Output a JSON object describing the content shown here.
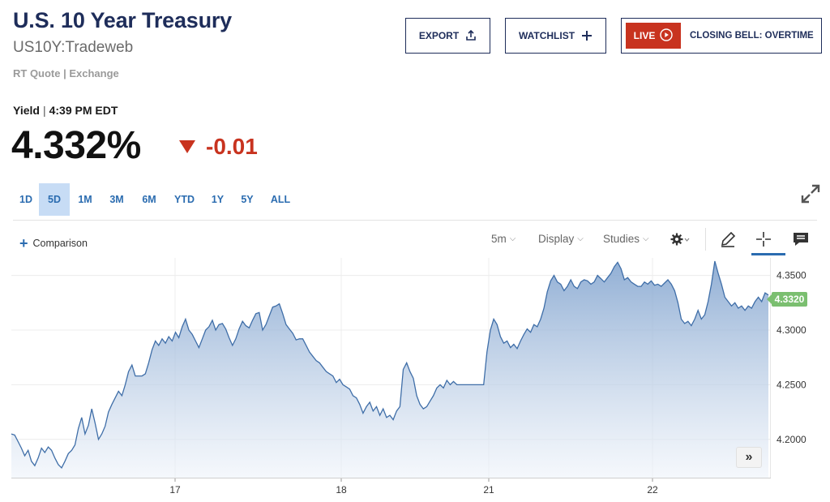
{
  "header": {
    "title": "U.S. 10 Year Treasury",
    "symbol": "US10Y:Tradeweb",
    "source": "RT Quote | Exchange"
  },
  "actions": {
    "export_label": "EXPORT",
    "watchlist_label": "WATCHLIST",
    "live_label": "LIVE",
    "closing_bell_label": "CLOSING BELL: OVERTIME"
  },
  "quote": {
    "label": "Yield",
    "time": "4:39 PM EDT",
    "last": "4.332%",
    "change": "-0.01",
    "direction": "down"
  },
  "ranges": [
    {
      "label": "1D",
      "active": false
    },
    {
      "label": "5D",
      "active": true
    },
    {
      "label": "1M",
      "active": false
    },
    {
      "label": "3M",
      "active": false
    },
    {
      "label": "6M",
      "active": false
    },
    {
      "label": "YTD",
      "active": false
    },
    {
      "label": "1Y",
      "active": false
    },
    {
      "label": "5Y",
      "active": false
    },
    {
      "label": "ALL",
      "active": false
    }
  ],
  "toolbar": {
    "comparison_label": "Comparison",
    "interval_label": "5m",
    "display_label": "Display",
    "studies_label": "Studies"
  },
  "colors": {
    "title": "#1e2d5a",
    "negative": "#c8331f",
    "accent": "#2b6cb0",
    "line": "#3f6ea8",
    "price_tag": "#7bbf70"
  },
  "chart_data": {
    "type": "area",
    "xlabel": "",
    "ylabel": "",
    "x_tick_labels": [
      "17",
      "18",
      "21",
      "22"
    ],
    "y_tick_labels": [
      "4.2000",
      "4.2500",
      "4.3000",
      "4.3500"
    ],
    "ylim": [
      4.165,
      4.366
    ],
    "grid": true,
    "current_price_label": "4.3320",
    "series": [
      {
        "values": [
          4.205,
          4.204,
          4.198,
          4.192,
          4.185,
          4.19,
          4.18,
          4.176,
          4.183,
          4.192,
          4.188,
          4.193,
          4.19,
          4.183,
          4.177,
          4.174,
          4.18,
          4.187,
          4.19,
          4.195,
          4.21,
          4.22,
          4.205,
          4.213,
          4.228,
          4.215,
          4.2,
          4.205,
          4.212,
          4.225,
          4.232,
          4.238,
          4.244,
          4.24,
          4.25,
          4.262,
          4.268,
          4.258,
          4.258,
          4.258,
          4.26,
          4.27,
          4.282,
          4.29,
          4.286,
          4.292,
          4.288,
          4.294,
          4.29,
          4.298,
          4.293,
          4.303,
          4.31,
          4.3,
          4.296,
          4.29,
          4.284,
          4.292,
          4.3,
          4.303,
          4.309,
          4.3,
          4.305,
          4.306,
          4.301,
          4.293,
          4.286,
          4.292,
          4.301,
          4.308,
          4.304,
          4.302,
          4.309,
          4.315,
          4.316,
          4.3,
          4.305,
          4.313,
          4.321,
          4.322,
          4.324,
          4.315,
          4.305,
          4.301,
          4.297,
          4.291,
          4.292,
          4.292,
          4.286,
          4.28,
          4.276,
          4.272,
          4.27,
          4.266,
          4.262,
          4.26,
          4.258,
          4.252,
          4.255,
          4.25,
          4.248,
          4.246,
          4.24,
          4.238,
          4.232,
          4.224,
          4.23,
          4.234,
          4.226,
          4.23,
          4.222,
          4.228,
          4.22,
          4.222,
          4.218,
          4.226,
          4.23,
          4.264,
          4.27,
          4.262,
          4.256,
          4.24,
          4.232,
          4.228,
          4.23,
          4.235,
          4.24,
          4.247,
          4.25,
          4.247,
          4.254,
          4.25,
          4.253,
          4.25,
          4.25,
          4.25,
          4.25,
          4.25,
          4.25,
          4.25,
          4.25,
          4.25,
          4.28,
          4.3,
          4.31,
          4.305,
          4.294,
          4.288,
          4.29,
          4.284,
          4.287,
          4.283,
          4.29,
          4.296,
          4.301,
          4.298,
          4.305,
          4.303,
          4.31,
          4.32,
          4.335,
          4.345,
          4.35,
          4.344,
          4.342,
          4.336,
          4.34,
          4.346,
          4.34,
          4.338,
          4.344,
          4.346,
          4.345,
          4.342,
          4.344,
          4.35,
          4.347,
          4.344,
          4.348,
          4.352,
          4.358,
          4.362,
          4.356,
          4.346,
          4.348,
          4.344,
          4.342,
          4.34,
          4.34,
          4.344,
          4.342,
          4.345,
          4.341,
          4.342,
          4.34,
          4.343,
          4.346,
          4.342,
          4.336,
          4.325,
          4.31,
          4.306,
          4.308,
          4.304,
          4.31,
          4.318,
          4.31,
          4.314,
          4.326,
          4.342,
          4.363,
          4.352,
          4.342,
          4.33,
          4.326,
          4.322,
          4.325,
          4.32,
          4.322,
          4.318,
          4.322,
          4.32,
          4.326,
          4.33,
          4.326,
          4.334,
          4.332
        ]
      }
    ]
  }
}
